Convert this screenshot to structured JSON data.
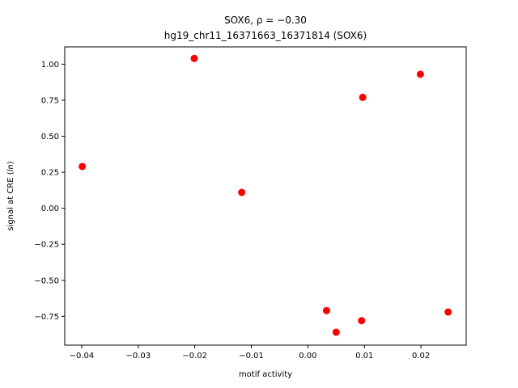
{
  "chart_data": {
    "type": "scatter",
    "title_line1": "SOX6, ρ = −0.30",
    "title_line2": "hg19_chr11_16371663_16371814 (SOX6)",
    "xlabel": "motif activity",
    "ylabel": "signal at CRE (ln)",
    "xlim": [
      -0.043,
      0.028
    ],
    "ylim": [
      -0.95,
      1.12
    ],
    "x_ticks": [
      -0.04,
      -0.03,
      -0.02,
      -0.01,
      0.0,
      0.01,
      0.02
    ],
    "x_tick_labels": [
      "−0.04",
      "−0.03",
      "−0.02",
      "−0.01",
      "0.00",
      "0.01",
      "0.02"
    ],
    "y_ticks": [
      1.0,
      0.75,
      0.5,
      0.25,
      0.0,
      -0.25,
      -0.5,
      -0.75
    ],
    "y_tick_labels": [
      "1.00",
      "0.75",
      "0.50",
      "0.25",
      "0.00",
      "−0.25",
      "−0.50",
      "−0.75"
    ],
    "grid": false,
    "marker_color": "#ff0000",
    "points": [
      {
        "x": -0.0399,
        "y": 0.29
      },
      {
        "x": -0.0201,
        "y": 1.04
      },
      {
        "x": -0.0117,
        "y": 0.11
      },
      {
        "x": 0.0033,
        "y": -0.71
      },
      {
        "x": 0.005,
        "y": -0.86
      },
      {
        "x": 0.0095,
        "y": -0.78
      },
      {
        "x": 0.0097,
        "y": 0.77
      },
      {
        "x": 0.0199,
        "y": 0.93
      },
      {
        "x": 0.0248,
        "y": -0.72
      }
    ]
  }
}
